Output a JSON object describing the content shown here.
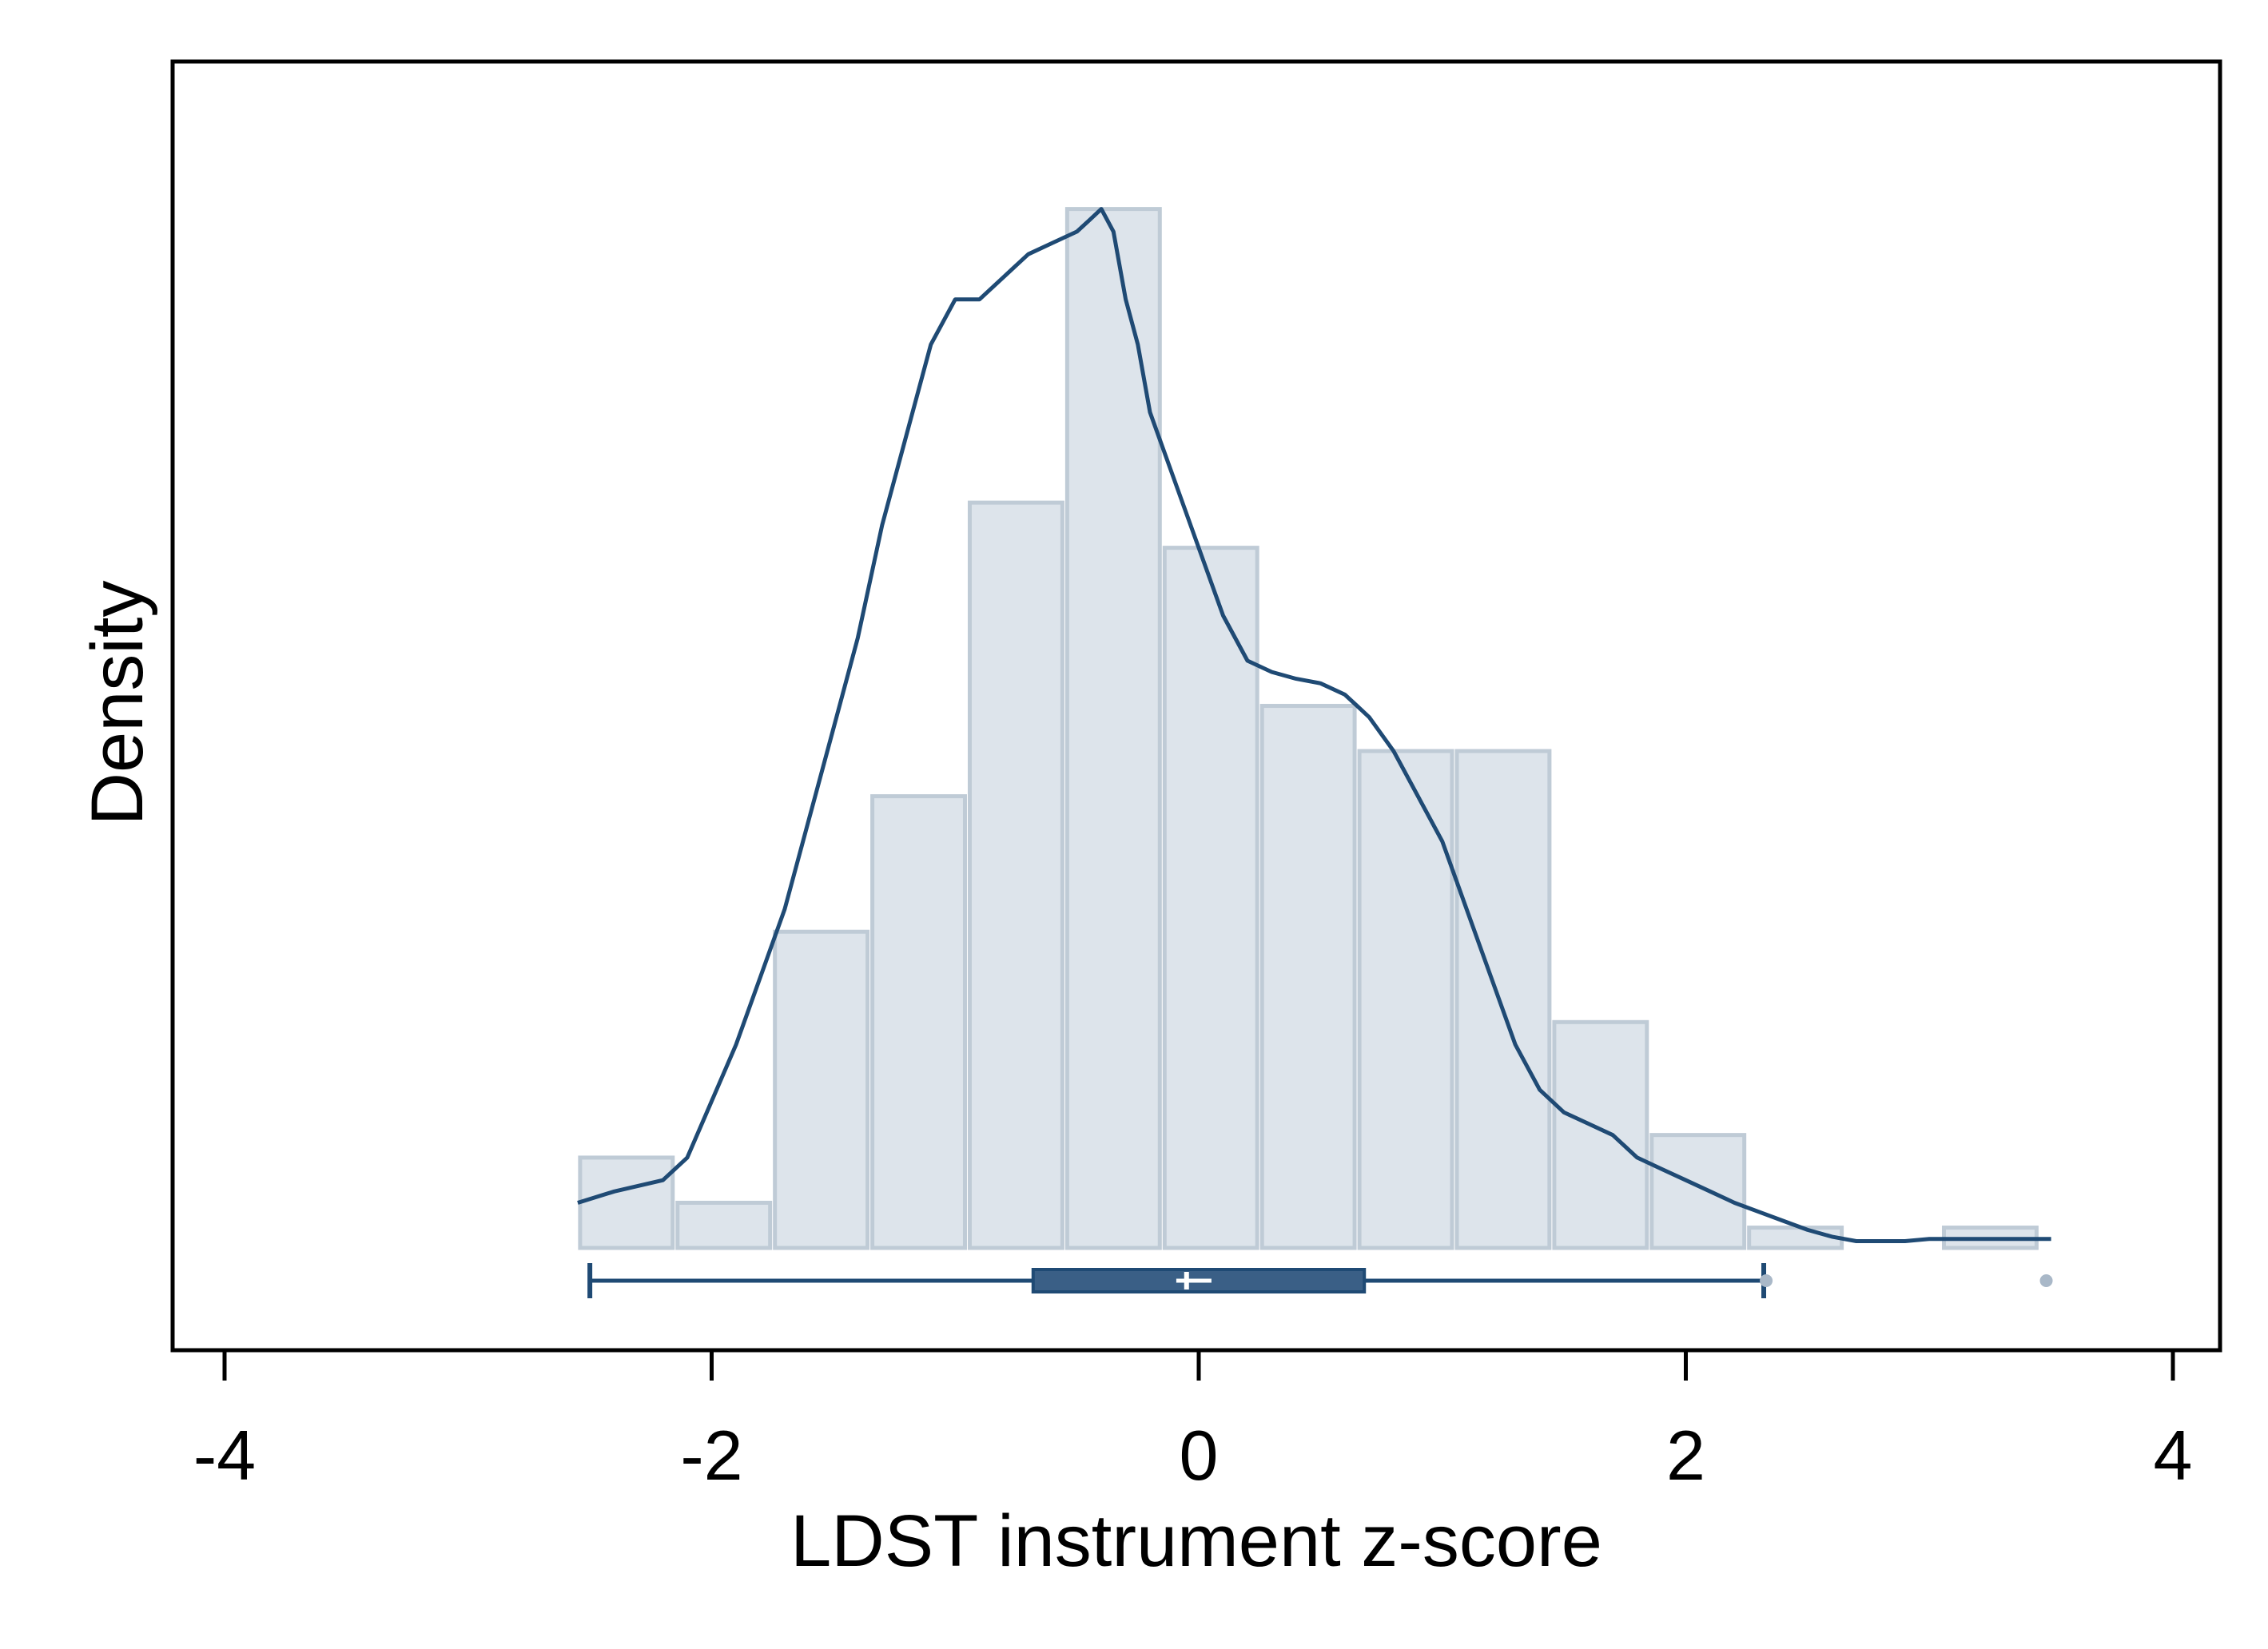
{
  "chart_data": {
    "type": "histogram",
    "xlabel": "LDST instrument z-score",
    "ylabel": "Density",
    "xlim": [
      -4,
      4
    ],
    "x_ticks": [
      -4,
      -2,
      0,
      2,
      4
    ],
    "x_tick_labels": [
      "-4",
      "-2",
      "0",
      "2",
      "4"
    ],
    "y_ticks_shown": false,
    "ylim": [
      0,
      0.52
    ],
    "grid": false,
    "colors": {
      "bar_fill": "#dde4eb",
      "bar_stroke": "#bfcbd6",
      "kde_line": "#1f4a74",
      "box_fill": "#3a5f86",
      "outlier": "#a9b8c8",
      "axis": "#000000"
    },
    "histogram": {
      "bin_edges": [
        -2.55,
        -2.15,
        -1.75,
        -1.35,
        -0.95,
        -0.55,
        -0.15,
        0.25,
        0.65,
        1.05,
        1.45,
        1.85,
        2.25,
        2.65,
        3.05,
        3.45
      ],
      "densities": [
        0.04,
        0.02,
        0.14,
        0.2,
        0.33,
        0.46,
        0.31,
        0.24,
        0.22,
        0.22,
        0.1,
        0.05,
        0.009,
        0.0,
        0.009
      ]
    },
    "kde": {
      "x": [
        -2.55,
        -2.4,
        -2.2,
        -2.1,
        -2.0,
        -1.9,
        -1.8,
        -1.7,
        -1.6,
        -1.5,
        -1.4,
        -1.3,
        -1.2,
        -1.1,
        -1.0,
        -0.9,
        -0.8,
        -0.7,
        -0.6,
        -0.5,
        -0.45,
        -0.4,
        -0.35,
        -0.3,
        -0.25,
        -0.2,
        -0.1,
        0.0,
        0.1,
        0.2,
        0.3,
        0.4,
        0.5,
        0.6,
        0.65,
        0.7,
        0.8,
        0.9,
        1.0,
        1.1,
        1.2,
        1.3,
        1.4,
        1.5,
        1.6,
        1.7,
        1.8,
        1.9,
        2.0,
        2.1,
        2.2,
        2.3,
        2.4,
        2.5,
        2.6,
        2.7,
        2.8,
        2.9,
        3.0,
        3.2,
        3.5
      ],
      "y": [
        0.02,
        0.025,
        0.03,
        0.04,
        0.065,
        0.09,
        0.12,
        0.15,
        0.19,
        0.23,
        0.27,
        0.32,
        0.36,
        0.4,
        0.42,
        0.42,
        0.43,
        0.44,
        0.445,
        0.45,
        0.455,
        0.46,
        0.45,
        0.42,
        0.4,
        0.37,
        0.34,
        0.31,
        0.28,
        0.26,
        0.255,
        0.252,
        0.25,
        0.245,
        0.24,
        0.235,
        0.22,
        0.2,
        0.18,
        0.15,
        0.12,
        0.09,
        0.07,
        0.06,
        0.055,
        0.05,
        0.04,
        0.035,
        0.03,
        0.025,
        0.02,
        0.016,
        0.012,
        0.008,
        0.005,
        0.003,
        0.003,
        0.003,
        0.004,
        0.004,
        0.004
      ]
    },
    "boxplot": {
      "whisker_low": -2.5,
      "q1": -0.68,
      "median": -0.05,
      "mean": -0.02,
      "q3": 0.68,
      "whisker_high": 2.32,
      "outliers": [
        2.33,
        3.48
      ]
    }
  }
}
